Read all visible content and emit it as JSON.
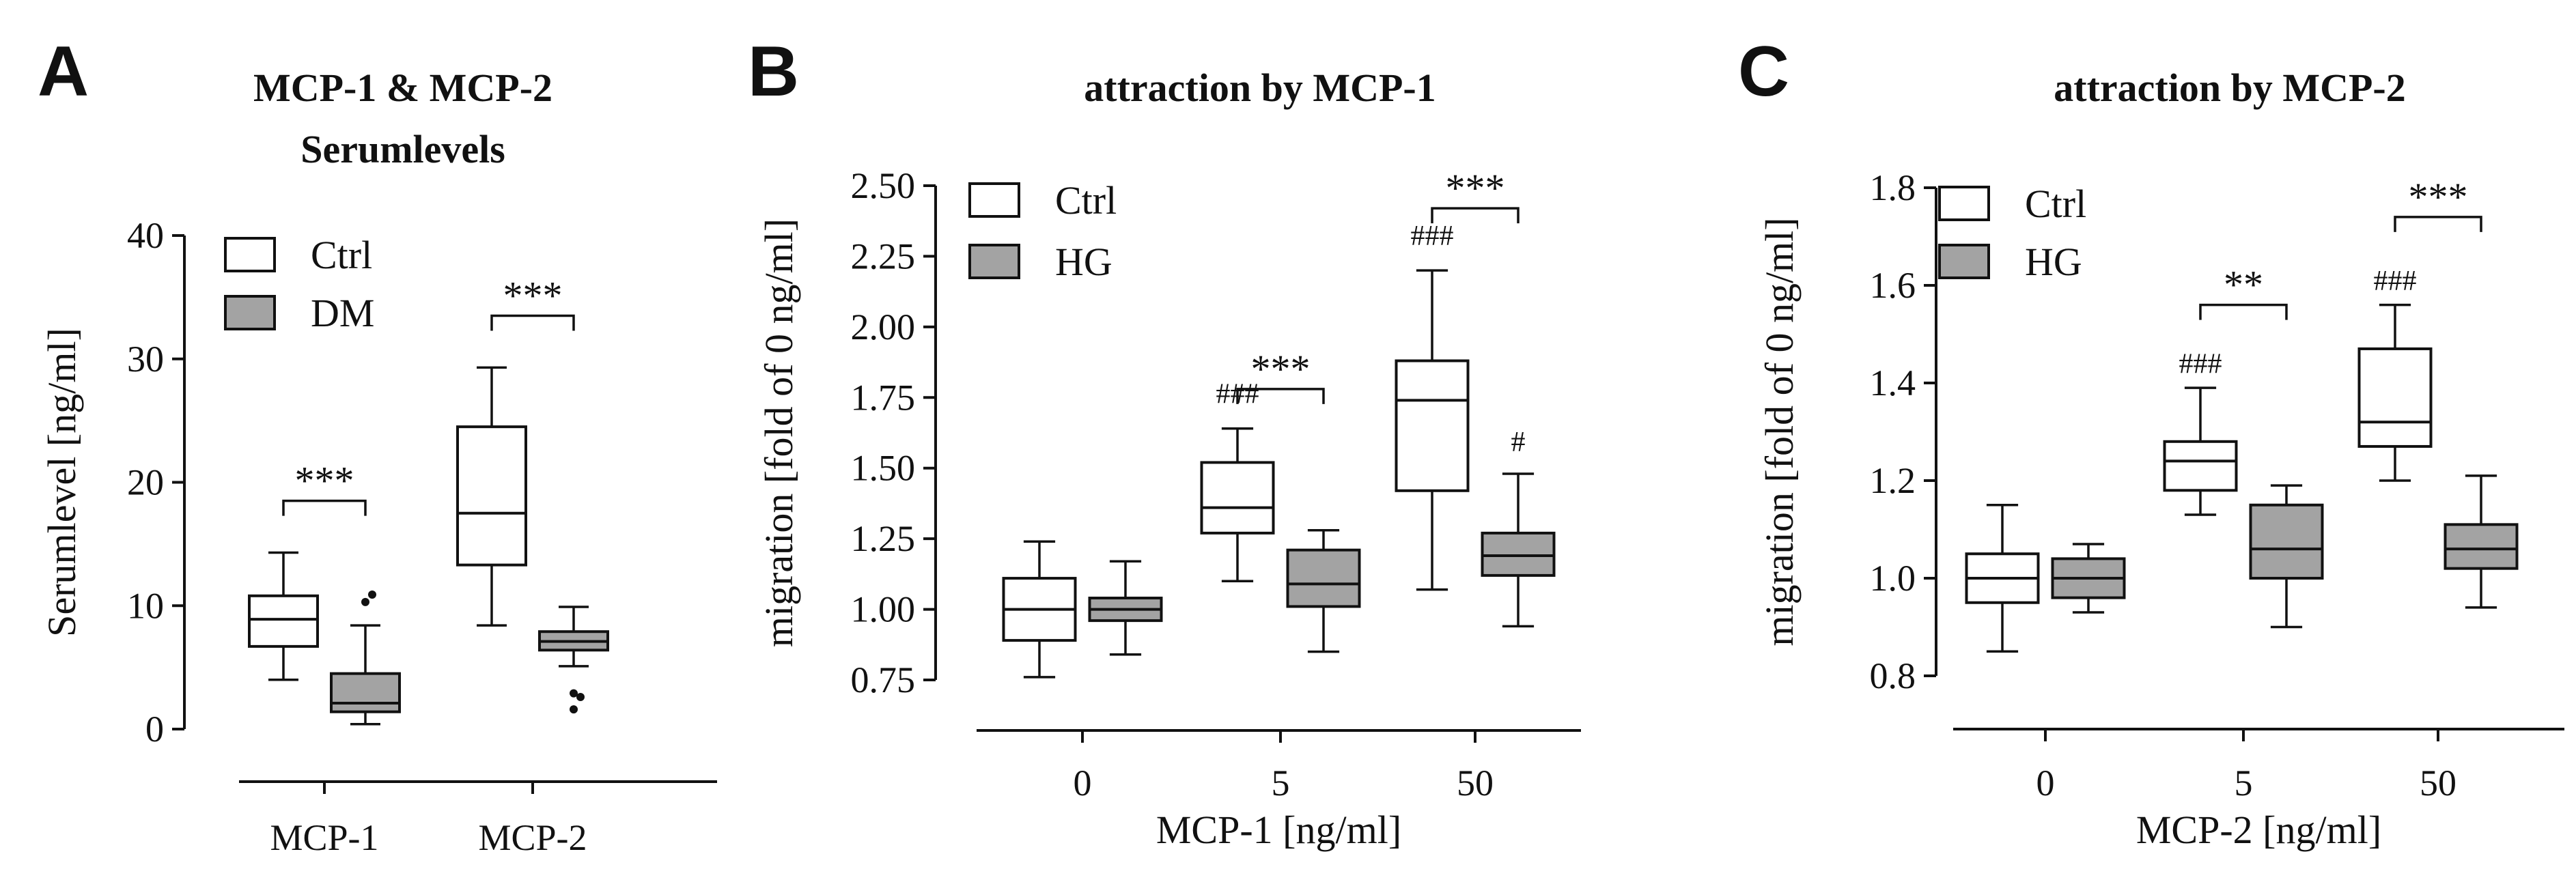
{
  "chart_data": [
    {
      "panel": "A",
      "type": "boxplot",
      "title": "MCP-1 & MCP-2",
      "subtitle": "Serumlevels",
      "xlabel": "",
      "ylabel": "Serumlevel [ng/ml]",
      "ylim": [
        0,
        40
      ],
      "yticks": [
        "0",
        "10",
        "20",
        "30",
        "40"
      ],
      "ytick_values": [
        0,
        10,
        20,
        30,
        40
      ],
      "categories": [
        "MCP-1",
        "MCP-2"
      ],
      "legend": [
        "Ctrl",
        "DM"
      ],
      "series": [
        {
          "name": "Ctrl",
          "color": "#ffffff",
          "boxes": [
            {
              "min": 4.0,
              "q1": 6.7,
              "median": 8.9,
              "q3": 10.8,
              "max": 14.3,
              "outliers": []
            },
            {
              "min": 8.4,
              "q1": 13.3,
              "median": 17.5,
              "q3": 24.5,
              "max": 29.3,
              "outliers": []
            }
          ]
        },
        {
          "name": "DM",
          "color": "#a3a3a3",
          "boxes": [
            {
              "min": 0.4,
              "q1": 1.4,
              "median": 2.1,
              "q3": 4.5,
              "max": 8.4,
              "outliers": [
                10.3,
                10.9
              ]
            },
            {
              "min": 5.1,
              "q1": 6.4,
              "median": 7.1,
              "q3": 7.9,
              "max": 9.9,
              "outliers": [
                2.9,
                2.6,
                1.6
              ]
            }
          ]
        }
      ],
      "significance": [
        {
          "category": 0,
          "label": "***",
          "y": 18.5
        },
        {
          "category": 1,
          "label": "***",
          "y": 33.5
        }
      ],
      "hash_marks": []
    },
    {
      "panel": "B",
      "type": "boxplot",
      "title": "attraction by MCP-1",
      "xlabel": "MCP-1 [ng/ml]",
      "ylabel": "migration [fold of 0 ng/ml]",
      "ylim": [
        0.75,
        2.5
      ],
      "yticks": [
        "0.75",
        "1.00",
        "1.25",
        "1.50",
        "1.75",
        "2.00",
        "2.25",
        "2.50"
      ],
      "ytick_values": [
        0.75,
        1.0,
        1.25,
        1.5,
        1.75,
        2.0,
        2.25,
        2.5
      ],
      "categories": [
        "0",
        "5",
        "50"
      ],
      "legend": [
        "Ctrl",
        "HG"
      ],
      "series": [
        {
          "name": "Ctrl",
          "color": "#ffffff",
          "boxes": [
            {
              "min": 0.76,
              "q1": 0.89,
              "median": 1.0,
              "q3": 1.11,
              "max": 1.24,
              "outliers": []
            },
            {
              "min": 1.1,
              "q1": 1.27,
              "median": 1.36,
              "q3": 1.52,
              "max": 1.64,
              "outliers": []
            },
            {
              "min": 1.07,
              "q1": 1.42,
              "median": 1.74,
              "q3": 1.88,
              "max": 2.2,
              "outliers": []
            }
          ]
        },
        {
          "name": "HG",
          "color": "#a3a3a3",
          "boxes": [
            {
              "min": 0.84,
              "q1": 0.96,
              "median": 1.0,
              "q3": 1.04,
              "max": 1.17,
              "outliers": []
            },
            {
              "min": 0.85,
              "q1": 1.01,
              "median": 1.09,
              "q3": 1.21,
              "max": 1.28,
              "outliers": []
            },
            {
              "min": 0.94,
              "q1": 1.12,
              "median": 1.19,
              "q3": 1.27,
              "max": 1.48,
              "outliers": []
            }
          ]
        }
      ],
      "significance": [
        {
          "category": 1,
          "label": "***",
          "y": 1.78
        },
        {
          "category": 2,
          "label": "***",
          "y": 2.42
        }
      ],
      "hash_marks": [
        {
          "category": 1,
          "series": 0,
          "label": "###",
          "y": 1.73
        },
        {
          "category": 2,
          "series": 0,
          "label": "###",
          "y": 2.29
        },
        {
          "category": 2,
          "series": 1,
          "label": "#",
          "y": 1.56
        }
      ]
    },
    {
      "panel": "C",
      "type": "boxplot",
      "title": "attraction by MCP-2",
      "xlabel": "MCP-2 [ng/ml]",
      "ylabel": "migration [fold of 0 ng/ml]",
      "ylim": [
        0.8,
        1.8
      ],
      "yticks": [
        "0.8",
        "1.0",
        "1.2",
        "1.4",
        "1.6",
        "1.8"
      ],
      "ytick_values": [
        0.8,
        1.0,
        1.2,
        1.4,
        1.6,
        1.8
      ],
      "categories": [
        "0",
        "5",
        "50"
      ],
      "legend": [
        "Ctrl",
        "HG"
      ],
      "series": [
        {
          "name": "Ctrl",
          "color": "#ffffff",
          "boxes": [
            {
              "min": 0.85,
              "q1": 0.95,
              "median": 1.0,
              "q3": 1.05,
              "max": 1.15,
              "outliers": []
            },
            {
              "min": 1.13,
              "q1": 1.18,
              "median": 1.24,
              "q3": 1.28,
              "max": 1.39,
              "outliers": []
            },
            {
              "min": 1.2,
              "q1": 1.27,
              "median": 1.32,
              "q3": 1.47,
              "max": 1.56,
              "outliers": []
            }
          ]
        },
        {
          "name": "HG",
          "color": "#a3a3a3",
          "boxes": [
            {
              "min": 0.93,
              "q1": 0.96,
              "median": 1.0,
              "q3": 1.04,
              "max": 1.07,
              "outliers": []
            },
            {
              "min": 0.9,
              "q1": 1.0,
              "median": 1.06,
              "q3": 1.15,
              "max": 1.19,
              "outliers": []
            },
            {
              "min": 0.94,
              "q1": 1.02,
              "median": 1.06,
              "q3": 1.11,
              "max": 1.21,
              "outliers": []
            }
          ]
        }
      ],
      "significance": [
        {
          "category": 1,
          "label": "**",
          "y": 1.56
        },
        {
          "category": 2,
          "label": "***",
          "y": 1.74
        }
      ],
      "hash_marks": [
        {
          "category": 1,
          "series": 0,
          "label": "###",
          "y": 1.42
        },
        {
          "category": 2,
          "series": 0,
          "label": "###",
          "y": 1.59
        }
      ]
    }
  ]
}
